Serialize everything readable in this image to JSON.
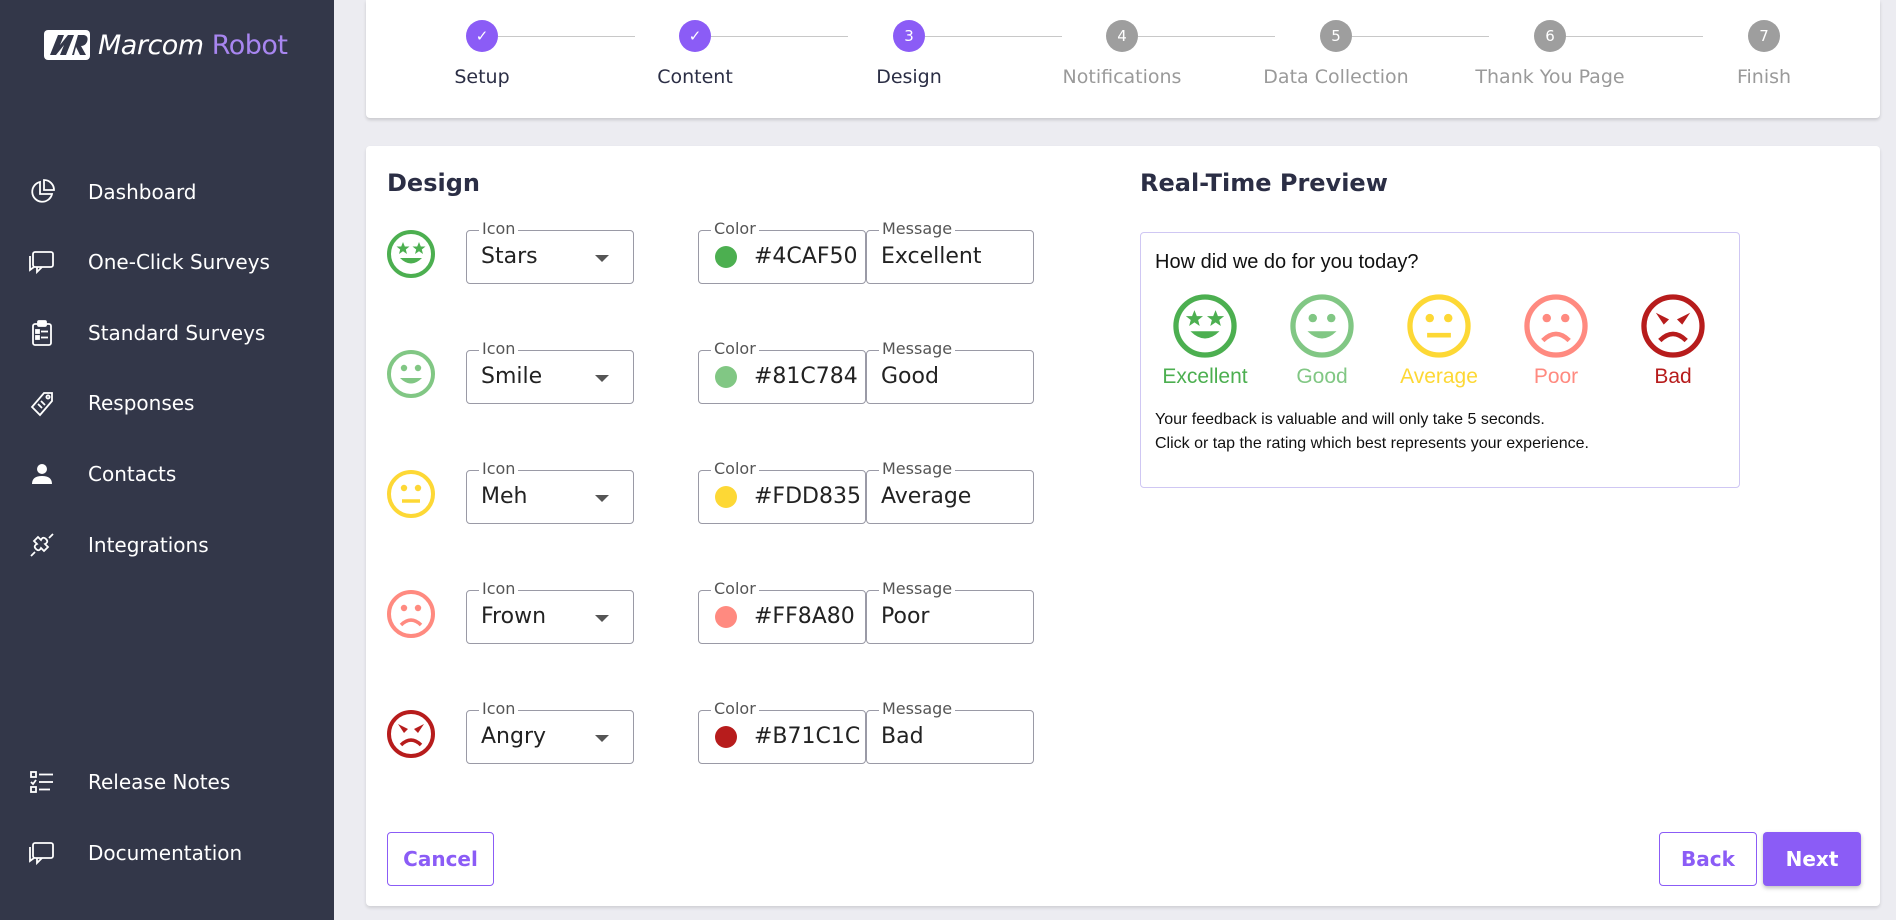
{
  "brand": {
    "name_part1": "Marcom",
    "name_part2": "Robot",
    "mark": "MR"
  },
  "sidebar": {
    "items": [
      {
        "label": "Dashboard",
        "icon": "pie-chart-icon"
      },
      {
        "label": "One-Click Surveys",
        "icon": "chat-bubble-icon"
      },
      {
        "label": "Standard Surveys",
        "icon": "clipboard-icon"
      },
      {
        "label": "Responses",
        "icon": "ticket-icon"
      },
      {
        "label": "Contacts",
        "icon": "person-icon"
      },
      {
        "label": "Integrations",
        "icon": "puzzle-icon"
      }
    ],
    "bottom_items": [
      {
        "label": "Release Notes",
        "icon": "checklist-icon"
      },
      {
        "label": "Documentation",
        "icon": "chat-bubble-icon"
      }
    ]
  },
  "stepper": {
    "steps": [
      {
        "label": "Setup",
        "number": "✓",
        "state": "completed"
      },
      {
        "label": "Content",
        "number": "✓",
        "state": "completed"
      },
      {
        "label": "Design",
        "number": "3",
        "state": "active"
      },
      {
        "label": "Notifications",
        "number": "4",
        "state": "pending"
      },
      {
        "label": "Data Collection",
        "number": "5",
        "state": "pending"
      },
      {
        "label": "Thank You Page",
        "number": "6",
        "state": "pending"
      },
      {
        "label": "Finish",
        "number": "7",
        "state": "pending"
      }
    ]
  },
  "design": {
    "title": "Design",
    "icon_label": "Icon",
    "color_label": "Color",
    "message_label": "Message",
    "rows": [
      {
        "icon": "Stars",
        "color": "#4CAF50",
        "message": "Excellent"
      },
      {
        "icon": "Smile",
        "color": "#81C784",
        "message": "Good"
      },
      {
        "icon": "Meh",
        "color": "#FDD835",
        "message": "Average"
      },
      {
        "icon": "Frown",
        "color": "#FF8A80",
        "message": "Poor"
      },
      {
        "icon": "Angry",
        "color": "#B71C1C",
        "message": "Bad"
      }
    ]
  },
  "preview": {
    "title": "Real-Time Preview",
    "question": "How did we do for you today?",
    "line1": "Your feedback is valuable and will only take 5 seconds.",
    "line2": "Click or tap the rating which best represents your experience."
  },
  "actions": {
    "cancel": "Cancel",
    "back": "Back",
    "next": "Next"
  },
  "colors": {
    "accent": "#8b5cf6",
    "sidebar": "#333749"
  }
}
